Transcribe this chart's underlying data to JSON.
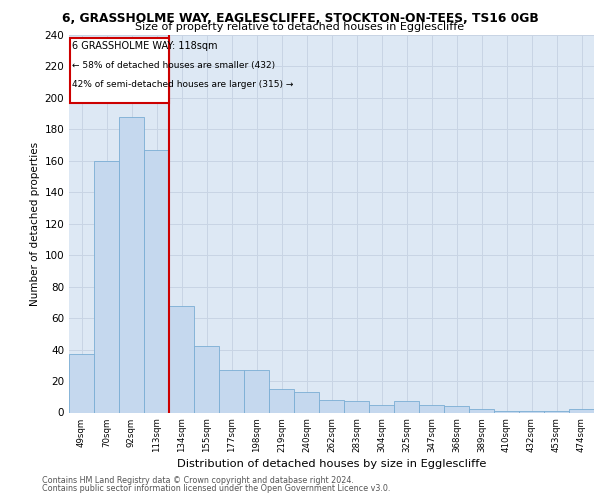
{
  "title1": "6, GRASSHOLME WAY, EAGLESCLIFFE, STOCKTON-ON-TEES, TS16 0GB",
  "title2": "Size of property relative to detached houses in Egglescliffe",
  "xlabel": "Distribution of detached houses by size in Egglescliffe",
  "ylabel": "Number of detached properties",
  "categories": [
    "49sqm",
    "70sqm",
    "92sqm",
    "113sqm",
    "134sqm",
    "155sqm",
    "177sqm",
    "198sqm",
    "219sqm",
    "240sqm",
    "262sqm",
    "283sqm",
    "304sqm",
    "325sqm",
    "347sqm",
    "368sqm",
    "389sqm",
    "410sqm",
    "432sqm",
    "453sqm",
    "474sqm"
  ],
  "values": [
    37,
    160,
    188,
    167,
    68,
    42,
    27,
    27,
    15,
    13,
    8,
    7,
    5,
    7,
    5,
    4,
    2,
    1,
    1,
    1,
    2
  ],
  "bar_color": "#c5d8ee",
  "bar_edge_color": "#7aadd4",
  "ref_line_label": "6 GRASSHOLME WAY: 118sqm",
  "annotation_line1": "← 58% of detached houses are smaller (432)",
  "annotation_line2": "42% of semi-detached houses are larger (315) →",
  "box_color": "#ffffff",
  "box_edge_color": "#cc0000",
  "grid_color": "#c8d4e4",
  "background_color": "#dde8f4",
  "footer1": "Contains HM Land Registry data © Crown copyright and database right 2024.",
  "footer2": "Contains public sector information licensed under the Open Government Licence v3.0.",
  "ylim": [
    0,
    240
  ],
  "yticks": [
    0,
    20,
    40,
    60,
    80,
    100,
    120,
    140,
    160,
    180,
    200,
    220,
    240
  ]
}
